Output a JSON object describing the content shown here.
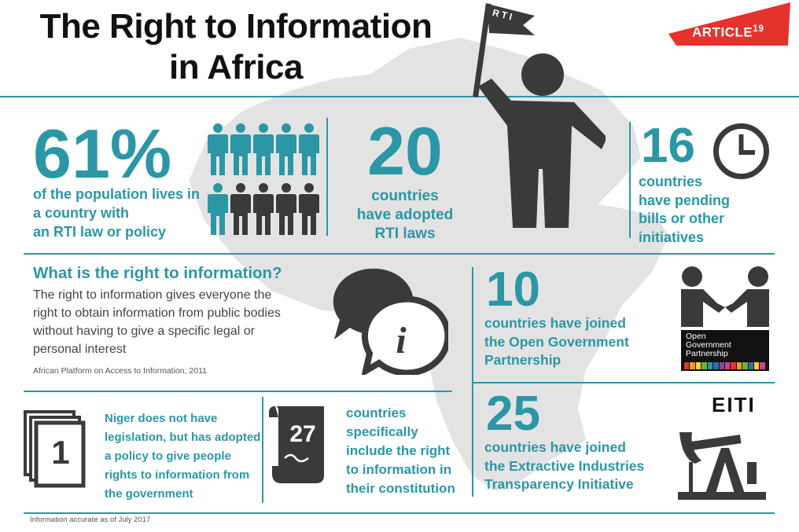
{
  "header": {
    "title_line1": "The Right to Information",
    "title_line2": "in Africa"
  },
  "logo": {
    "text": "ARTICLE",
    "superscript": "19",
    "color": "#e5322d"
  },
  "flag": {
    "text": "RTI"
  },
  "stats": {
    "population": {
      "value": "61%",
      "text_lines": [
        "of the population lives in",
        "a country with",
        "an RTI law or policy"
      ],
      "people_total": 10,
      "people_highlighted": 6
    },
    "adopted": {
      "value": "20",
      "text_lines": [
        "countries",
        "have adopted",
        "RTI laws"
      ]
    },
    "pending": {
      "value": "16",
      "text_lines": [
        "countries",
        "have pending",
        "bills or other",
        "initiatives"
      ]
    },
    "ogp": {
      "value": "10",
      "text_lines": [
        "countries have joined",
        "the Open Government",
        "Partnership"
      ],
      "logo_lines": [
        "Open",
        "Government",
        "Partnership"
      ]
    },
    "eiti": {
      "value": "25",
      "text_lines": [
        "countries have joined",
        "the Extractive Industries",
        "Transparency Initiative"
      ],
      "logo_text": "EITI"
    },
    "constitution": {
      "value": "27",
      "text_lines": [
        "countries",
        "specifically",
        "include the right",
        "to information in",
        "their constitution"
      ]
    },
    "niger": {
      "value": "1",
      "text_lines": [
        "Niger does not have",
        "legislation, but has adopted",
        "a policy to give people",
        "rights to information from",
        "the government"
      ]
    }
  },
  "definition": {
    "heading": "What is the right to information?",
    "body_lines": [
      "The right to information gives everyone the",
      "right to obtain information from public bodies",
      "without having to give a specific legal or",
      "personal interest"
    ],
    "source": "African Platform on Access to Information, 2011"
  },
  "footer": {
    "note": "Information accurate as of July 2017"
  },
  "colors": {
    "teal": "#2b97a6",
    "dark": "#3a3a3a",
    "map": "#e3e3e3",
    "red": "#e5322d"
  }
}
